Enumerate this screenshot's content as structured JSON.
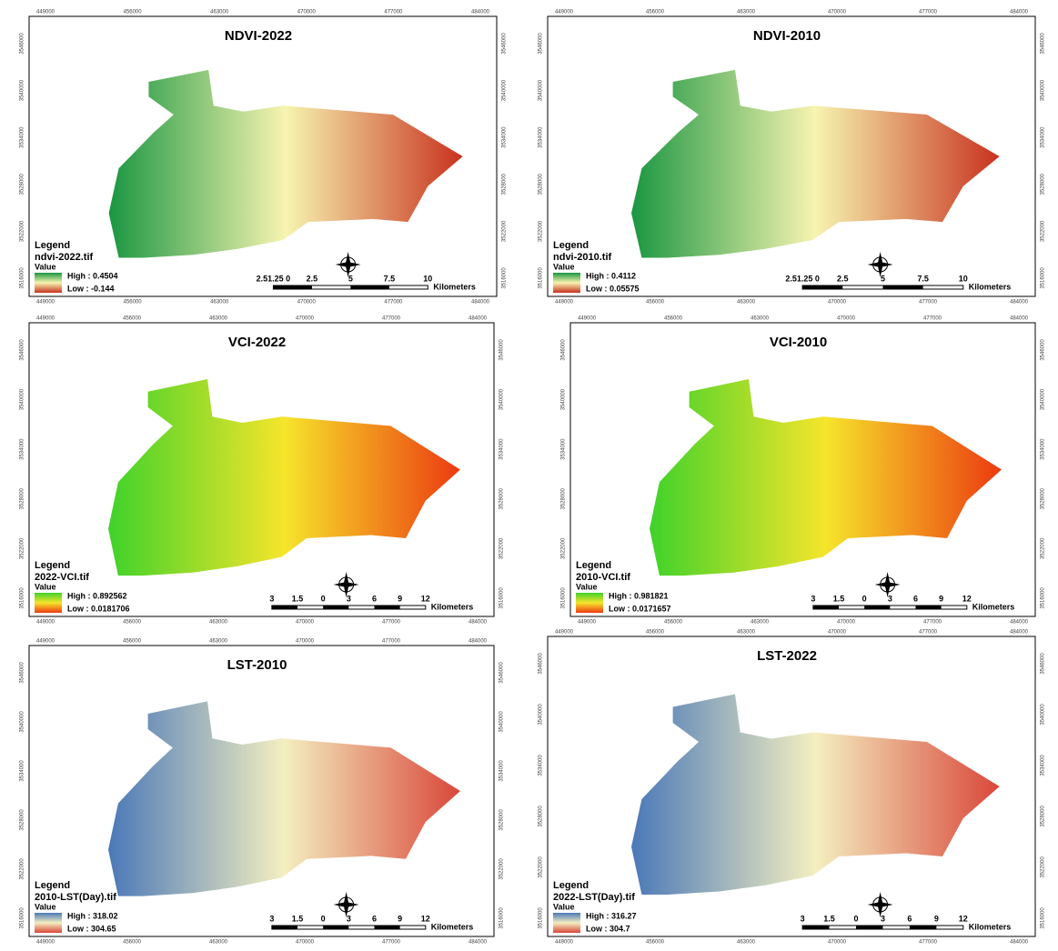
{
  "panels": [
    {
      "title": "NDVI-2022",
      "legend_title": "Legend",
      "layer": "ndvi-2022.tif",
      "value_label": "Value",
      "high": "High : 0.4504",
      "low": "Low : -0.144",
      "scale_labels": [
        "2.51.25 0",
        "2.5",
        "5",
        "7.5",
        "10"
      ],
      "scale_unit": "Kilometers",
      "colors": [
        "#1a9641",
        "#f7f4b0",
        "#c8321e"
      ]
    },
    {
      "title": "NDVI-2010",
      "legend_title": "Legend",
      "layer": "ndvi-2010.tif",
      "value_label": "Value",
      "high": "High : 0.4112",
      "low": "Low : 0.05575",
      "scale_labels": [
        "2.51.25 0",
        "2.5",
        "5",
        "7.5",
        "10"
      ],
      "scale_unit": "Kilometers",
      "colors": [
        "#1a9641",
        "#f7f4b0",
        "#c8321e"
      ]
    },
    {
      "title": "VCI-2022",
      "legend_title": "Legend",
      "layer": "2022-VCI.tif",
      "value_label": "Value",
      "high": "High : 0.892562",
      "low": "Low : 0.0181706",
      "scale_labels": [
        "3",
        "1.5",
        "0",
        "3",
        "6",
        "9",
        "12"
      ],
      "scale_unit": "Kilometers",
      "colors": [
        "#3fd22a",
        "#f6e52b",
        "#ec3a10"
      ]
    },
    {
      "title": "VCI-2010",
      "legend_title": "Legend",
      "layer": "2010-VCI.tif",
      "value_label": "Value",
      "high": "High : 0.981821",
      "low": "Low : 0.0171657",
      "scale_labels": [
        "3",
        "1.5",
        "0",
        "3",
        "6",
        "9",
        "12"
      ],
      "scale_unit": "Kilometers",
      "colors": [
        "#3fd22a",
        "#f6e52b",
        "#ec3a10"
      ]
    },
    {
      "title": "LST-2010",
      "legend_title": "Legend",
      "layer": "2010-LST(Day).tif",
      "value_label": "Value",
      "high": "High : 318.02",
      "low": "Low : 304.65",
      "scale_labels": [
        "3",
        "1.5",
        "0",
        "3",
        "6",
        "9",
        "12"
      ],
      "scale_unit": "Kilometers",
      "colors": [
        "#4a78b8",
        "#f4efc0",
        "#d9473a"
      ]
    },
    {
      "title": "LST-2022",
      "legend_title": "Legend",
      "layer": "2022-LST(Day).tif",
      "value_label": "Value",
      "high": "High : 316.27",
      "low": "Low : 304.7",
      "scale_labels": [
        "3",
        "1.5",
        "0",
        "3",
        "6",
        "9",
        "12"
      ],
      "scale_unit": "Kilometers",
      "colors": [
        "#4a78b8",
        "#f4efc0",
        "#d9473a"
      ]
    }
  ],
  "x_ticks": [
    "449000",
    "456000",
    "463000",
    "470000",
    "477000",
    "484000"
  ],
  "y_ticks": [
    "3546000",
    "3540000",
    "3534000",
    "3528000",
    "3522000",
    "3516000"
  ]
}
